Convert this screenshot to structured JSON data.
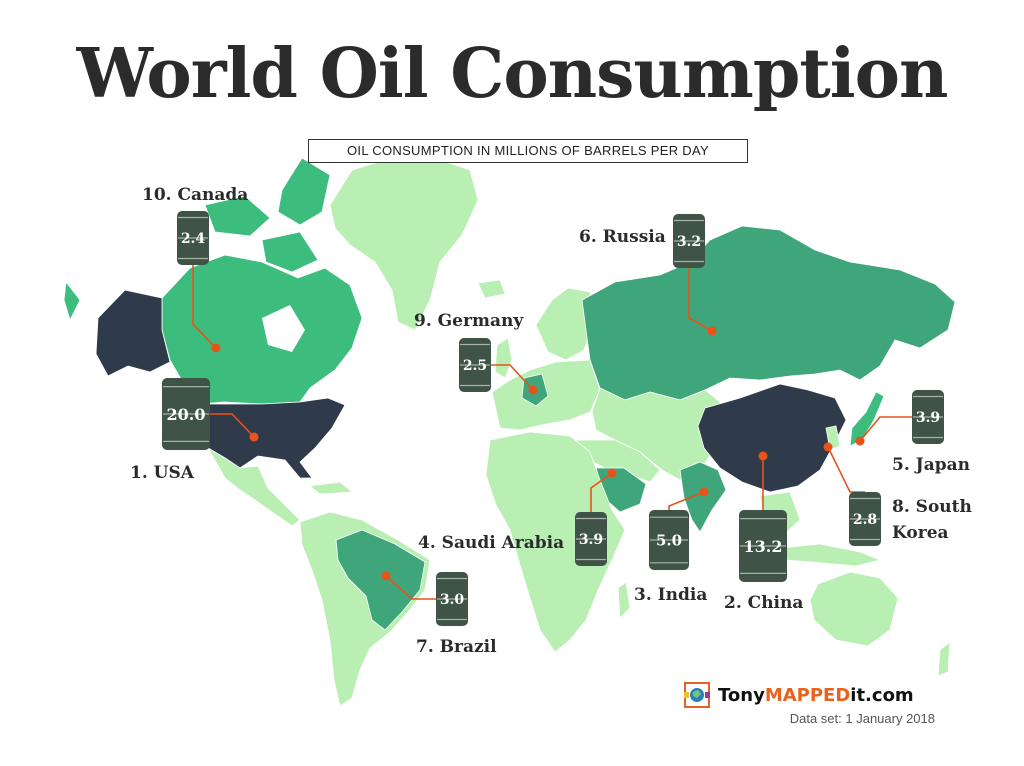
{
  "title": "World Oil Consumption",
  "subtitle": "OIL CONSUMPTION IN MILLIONS OF BARRELS PER DAY",
  "colors": {
    "top_tier": "#2f3b4a",
    "mid_tier": "#3fa57a",
    "low_tier": "#3dbd7d",
    "other": "#b9efb3",
    "barrel": "#3f5346",
    "leader": "#e8521b"
  },
  "countries": [
    {
      "rank_label": "1. USA",
      "value": "20.0"
    },
    {
      "rank_label": "2. China",
      "value": "13.2"
    },
    {
      "rank_label": "3. India",
      "value": "5.0"
    },
    {
      "rank_label": "4. Saudi Arabia",
      "value": "3.9"
    },
    {
      "rank_label": "5. Japan",
      "value": "3.9"
    },
    {
      "rank_label": "6. Russia",
      "value": "3.2"
    },
    {
      "rank_label": "7. Brazil",
      "value": "3.0"
    },
    {
      "rank_label": "8. South Korea",
      "label_lines": [
        "8. South",
        "Korea"
      ],
      "value": "2.8"
    },
    {
      "rank_label": "9. Germany",
      "value": "2.5"
    },
    {
      "rank_label": "10. Canada",
      "value": "2.4"
    }
  ],
  "brand": {
    "pre": "Tony",
    "mid": "MAPPED",
    "post": "it.com"
  },
  "dataset_note": "Data set: 1 January 2018"
}
